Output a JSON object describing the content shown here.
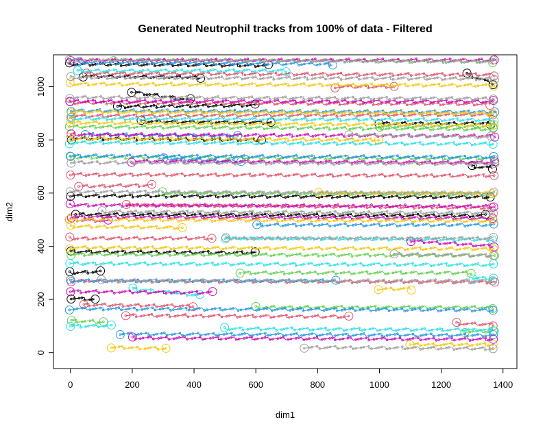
{
  "chart_data": {
    "type": "scatter",
    "title": "Generated Neutrophil tracks from 100% of data - Filtered",
    "xlabel": "dim1",
    "ylabel": "dim2",
    "xlim": [
      -55,
      1445
    ],
    "ylim": [
      -60,
      1120
    ],
    "xticks": [
      "0",
      "200",
      "400",
      "600",
      "800",
      "1000",
      "1200",
      "1400"
    ],
    "yticks": [
      "0",
      "200",
      "400",
      "600",
      "800",
      "1000"
    ],
    "grid": false,
    "legend": "none",
    "palette": [
      "#000000",
      "#DF536B",
      "#61D04F",
      "#2297E6",
      "#28E2E5",
      "#CD0BBC",
      "#F5C710",
      "#9E9E9E"
    ],
    "series": [
      {
        "color": "#000000",
        "tracks": [
          [
            0,
            1085,
            640,
            1080
          ],
          [
            40,
            1040,
            420,
            1035
          ],
          [
            200,
            980,
            390,
            950
          ],
          [
            150,
            925,
            600,
            930
          ],
          [
            230,
            870,
            650,
            865
          ],
          [
            0,
            805,
            620,
            800
          ],
          [
            0,
            590,
            1360,
            585
          ],
          [
            20,
            520,
            1340,
            515
          ],
          [
            0,
            380,
            600,
            375
          ],
          [
            0,
            300,
            95,
            305
          ],
          [
            0,
            205,
            80,
            200
          ],
          [
            1000,
            862,
            1360,
            862
          ],
          [
            1280,
            1050,
            1370,
            1010
          ],
          [
            1300,
            700,
            1365,
            695
          ]
        ]
      },
      {
        "color": "#DF536B",
        "tracks": [
          [
            50,
            1050,
            1370,
            1045
          ],
          [
            0,
            940,
            1360,
            935
          ],
          [
            0,
            890,
            1370,
            895
          ],
          [
            0,
            670,
            1370,
            665
          ],
          [
            30,
            625,
            260,
            630
          ],
          [
            180,
            555,
            1360,
            545
          ],
          [
            0,
            430,
            460,
            430
          ],
          [
            0,
            270,
            1370,
            265
          ],
          [
            180,
            140,
            900,
            135
          ],
          [
            40,
            180,
            400,
            175
          ],
          [
            1250,
            110,
            1370,
            105
          ],
          [
            860,
            1000,
            1050,
            1000
          ]
        ]
      },
      {
        "color": "#61D04F",
        "tracks": [
          [
            140,
            1100,
            1370,
            1095
          ],
          [
            0,
            850,
            1370,
            840
          ],
          [
            0,
            735,
            1370,
            730
          ],
          [
            300,
            600,
            1370,
            595
          ],
          [
            0,
            370,
            1370,
            365
          ],
          [
            550,
            300,
            1300,
            300
          ],
          [
            0,
            120,
            110,
            115
          ],
          [
            600,
            170,
            1370,
            170
          ],
          [
            1280,
            80,
            1370,
            80
          ],
          [
            1000,
            850,
            1370,
            850
          ]
        ]
      },
      {
        "color": "#2297E6",
        "tracks": [
          [
            30,
            1090,
            850,
            1085
          ],
          [
            0,
            910,
            1370,
            905
          ],
          [
            0,
            740,
            1370,
            735
          ],
          [
            600,
            480,
            1370,
            480
          ],
          [
            0,
            270,
            860,
            270
          ],
          [
            0,
            165,
            1370,
            160
          ],
          [
            160,
            70,
            1370,
            65
          ],
          [
            50,
            820,
            540,
            815
          ],
          [
            300,
            730,
            550,
            720
          ]
        ]
      },
      {
        "color": "#28E2E5",
        "tracks": [
          [
            20,
            1060,
            700,
            1060
          ],
          [
            0,
            880,
            1370,
            875
          ],
          [
            0,
            790,
            1370,
            785
          ],
          [
            500,
            430,
            1370,
            425
          ],
          [
            0,
            335,
            1370,
            330
          ],
          [
            200,
            240,
            420,
            215
          ],
          [
            500,
            90,
            1370,
            85
          ],
          [
            1300,
            280,
            1370,
            280
          ],
          [
            0,
            100,
            130,
            100
          ]
        ]
      },
      {
        "color": "#CD0BBC",
        "tracks": [
          [
            0,
            1100,
            1370,
            1100
          ],
          [
            0,
            945,
            1370,
            945
          ],
          [
            0,
            820,
            1370,
            815
          ],
          [
            0,
            555,
            1370,
            550
          ],
          [
            0,
            510,
            1370,
            505
          ],
          [
            0,
            230,
            460,
            225
          ],
          [
            0,
            500,
            120,
            495
          ],
          [
            200,
            55,
            1370,
            50
          ],
          [
            200,
            720,
            1370,
            715
          ],
          [
            1100,
            420,
            1370,
            400
          ]
        ]
      },
      {
        "color": "#F5C710",
        "tracks": [
          [
            0,
            1010,
            1370,
            1005
          ],
          [
            0,
            905,
            1370,
            900
          ],
          [
            0,
            865,
            1370,
            855
          ],
          [
            0,
            500,
            1370,
            495
          ],
          [
            0,
            475,
            360,
            470
          ],
          [
            0,
            395,
            1370,
            390
          ],
          [
            130,
            20,
            310,
            15
          ],
          [
            1100,
            30,
            1370,
            30
          ],
          [
            800,
            600,
            1370,
            600
          ],
          [
            0,
            805,
            1000,
            800
          ],
          [
            1000,
            240,
            1100,
            240
          ]
        ]
      },
      {
        "color": "#9E9E9E",
        "tracks": [
          [
            0,
            1100,
            1370,
            1095
          ],
          [
            0,
            1035,
            1370,
            1030
          ],
          [
            0,
            960,
            1370,
            955
          ],
          [
            0,
            715,
            1370,
            710
          ],
          [
            0,
            605,
            1370,
            600
          ],
          [
            500,
            430,
            1370,
            430
          ],
          [
            100,
            270,
            1370,
            270
          ],
          [
            760,
            20,
            1370,
            15
          ],
          [
            900,
            820,
            1360,
            810
          ],
          [
            1050,
            370,
            1370,
            365
          ],
          [
            100,
            530,
            1370,
            525
          ]
        ]
      }
    ]
  }
}
